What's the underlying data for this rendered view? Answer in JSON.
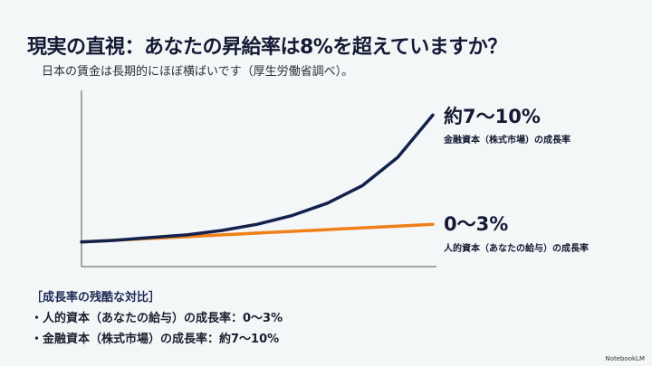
{
  "title": "現実の直視：あなたの昇給率は8%を超えていますか？",
  "subtitle": "日本の賃金は長期的にほぼ横ばいです（厚生労働省調べ）。",
  "chart_data": {
    "type": "line",
    "title": "",
    "xlabel": "",
    "ylabel": "",
    "x": [
      0,
      1,
      2,
      3,
      4,
      5,
      6,
      7,
      8,
      9,
      10
    ],
    "ylim": [
      0,
      100
    ],
    "series": [
      {
        "name": "金融資本（株式市場）の成長率",
        "headline": "約7〜10%",
        "color": "#13214d",
        "values": [
          14,
          15,
          16.5,
          18,
          20.5,
          24,
          29,
          36,
          46,
          62,
          86
        ]
      },
      {
        "name": "人的資本（あなたの給与）の成長率",
        "headline": "0〜3%",
        "color": "#f07f17",
        "values": [
          14,
          15,
          16,
          17,
          18,
          19,
          20,
          21,
          22,
          23,
          24
        ]
      }
    ]
  },
  "notes": {
    "heading": "［成長率の残酷な対比］",
    "items": [
      "・人的資本（あなたの給与）の成長率：0〜3%",
      "・金融資本（株式市場）の成長率：約7〜10%"
    ]
  },
  "footer": "NotebookLM"
}
